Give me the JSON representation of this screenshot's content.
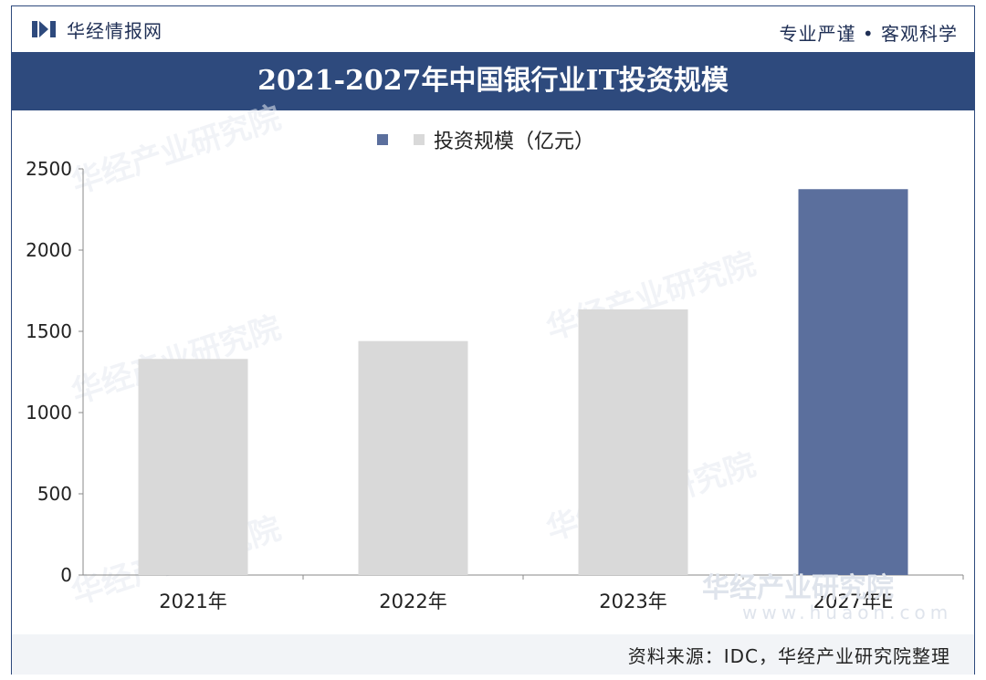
{
  "header": {
    "brand_name": "华经情报网",
    "motto": "专业严谨 • 客观科学",
    "brand_color": "#2e4a7d"
  },
  "chart_data": {
    "type": "bar",
    "title": "2021-2027年中国银行业IT投资规模",
    "categories": [
      "2021年",
      "2022年",
      "2023年",
      "2027年E"
    ],
    "series": [
      {
        "name": "投资规模（亿元）",
        "values": [
          1330,
          1440,
          1635,
          2375
        ]
      }
    ],
    "bar_colors": [
      "#d9d9d9",
      "#d9d9d9",
      "#d9d9d9",
      "#5b6f9d"
    ],
    "ylim": [
      0,
      2500
    ],
    "yticks": [
      0,
      500,
      1000,
      1500,
      2000,
      2500
    ],
    "grid": false,
    "legend": "top"
  },
  "footer": {
    "source": "资料来源：IDC，华经产业研究院整理"
  },
  "watermark": {
    "text": "华经产业研究院",
    "url": "www.huaon.com"
  }
}
